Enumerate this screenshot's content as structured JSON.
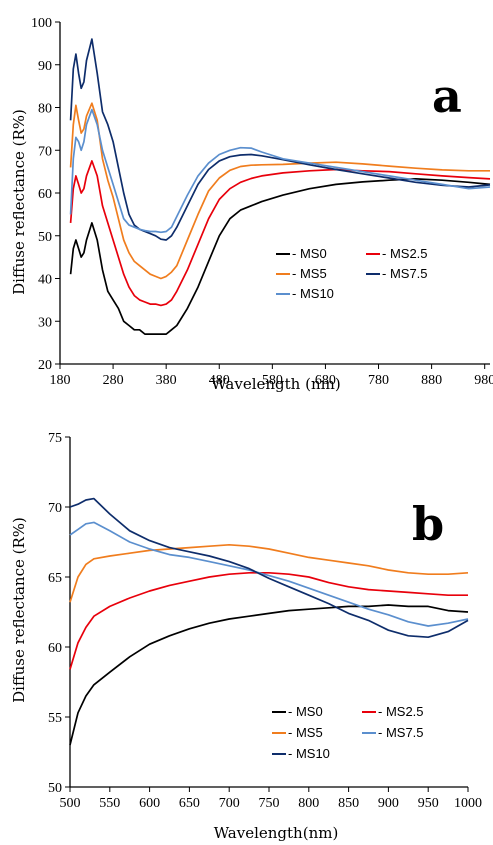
{
  "chart_data": [
    {
      "type": "line",
      "panel_label": "a",
      "xlabel": "Wavelength (nm)",
      "ylabel": "Diffuse reflectance (R%)",
      "xlim": [
        180,
        990
      ],
      "ylim": [
        20,
        100
      ],
      "xticks": [
        180,
        280,
        380,
        480,
        580,
        680,
        780,
        880,
        980
      ],
      "yticks": [
        20,
        30,
        40,
        50,
        60,
        70,
        80,
        90,
        100
      ],
      "legend_position": "center-right",
      "grid": false,
      "series": [
        {
          "name": "- MS0",
          "color": "#000000",
          "x": [
            200,
            205,
            210,
            215,
            220,
            225,
            230,
            240,
            250,
            260,
            270,
            280,
            290,
            300,
            310,
            320,
            330,
            340,
            350,
            360,
            370,
            380,
            390,
            400,
            420,
            440,
            460,
            480,
            500,
            520,
            540,
            560,
            600,
            650,
            700,
            750,
            800,
            850,
            900,
            950,
            990
          ],
          "y": [
            41,
            47,
            49,
            47,
            45,
            46,
            49,
            53,
            49,
            42,
            37,
            35,
            33,
            30,
            29,
            28,
            28,
            27,
            27,
            27,
            27,
            27,
            28,
            29,
            33,
            38,
            44,
            50,
            54,
            56,
            57,
            58,
            59.5,
            61,
            62,
            62.6,
            63,
            63.3,
            63,
            62.5,
            62
          ]
        },
        {
          "name": "- MS2.5",
          "color": "#e8000b",
          "x": [
            200,
            205,
            210,
            215,
            220,
            225,
            230,
            240,
            250,
            260,
            270,
            280,
            290,
            300,
            310,
            320,
            330,
            340,
            350,
            360,
            370,
            380,
            390,
            400,
            420,
            440,
            460,
            480,
            500,
            520,
            540,
            560,
            600,
            650,
            700,
            750,
            800,
            850,
            900,
            950,
            990
          ],
          "y": [
            53,
            61,
            64,
            62,
            60,
            61,
            64,
            67.5,
            64,
            57,
            53,
            49,
            45,
            41,
            38,
            36,
            35,
            34.5,
            34,
            34,
            33.7,
            34,
            35,
            37,
            42,
            48,
            54,
            58.5,
            61,
            62.5,
            63.4,
            64,
            64.7,
            65.2,
            65.5,
            65.2,
            65,
            64.5,
            64,
            63.6,
            63.3
          ]
        },
        {
          "name": "- MS5",
          "color": "#f07d1e",
          "x": [
            200,
            205,
            210,
            215,
            220,
            225,
            230,
            240,
            250,
            260,
            270,
            280,
            290,
            300,
            310,
            320,
            330,
            340,
            350,
            360,
            370,
            380,
            390,
            400,
            420,
            440,
            460,
            480,
            500,
            520,
            540,
            560,
            600,
            650,
            700,
            750,
            800,
            850,
            900,
            950,
            990
          ],
          "y": [
            66,
            76,
            80.5,
            77,
            74,
            75,
            78,
            81,
            77,
            68,
            63,
            59,
            54,
            49,
            46,
            44,
            43,
            42,
            41,
            40.5,
            40,
            40.5,
            41.5,
            43,
            49,
            55,
            60.5,
            63.5,
            65.3,
            66.2,
            66.5,
            66.6,
            66.7,
            67,
            67.2,
            66.8,
            66.3,
            65.8,
            65.4,
            65.2,
            65.2
          ]
        },
        {
          "name": "- MS7.5",
          "color": "#0e2d6b",
          "x": [
            200,
            205,
            210,
            215,
            220,
            225,
            230,
            240,
            250,
            260,
            270,
            280,
            290,
            300,
            310,
            320,
            330,
            340,
            350,
            360,
            370,
            380,
            390,
            400,
            420,
            440,
            460,
            480,
            500,
            520,
            540,
            560,
            600,
            650,
            700,
            750,
            800,
            850,
            900,
            950,
            990
          ],
          "y": [
            77,
            89,
            92.5,
            88,
            84.5,
            86,
            91,
            96,
            88,
            79,
            76,
            72,
            66,
            60,
            55,
            52.5,
            51.5,
            51,
            50.5,
            50,
            49.2,
            49,
            50,
            52,
            57,
            62,
            65.5,
            67.5,
            68.5,
            68.9,
            69,
            68.7,
            67.8,
            66.6,
            65.5,
            64.5,
            63.5,
            62.5,
            61.8,
            61.4,
            61.9
          ]
        },
        {
          "name": "- MS10",
          "color": "#5b8fce",
          "x": [
            200,
            205,
            210,
            215,
            220,
            225,
            230,
            240,
            250,
            260,
            270,
            280,
            290,
            300,
            310,
            320,
            330,
            340,
            350,
            360,
            370,
            380,
            390,
            400,
            420,
            440,
            460,
            480,
            500,
            520,
            540,
            560,
            600,
            650,
            700,
            750,
            800,
            850,
            900,
            950,
            990
          ],
          "y": [
            55,
            68,
            73,
            72,
            70,
            72,
            76,
            79.5,
            76,
            70,
            66,
            62,
            58,
            54,
            52.5,
            52,
            51.5,
            51.2,
            51,
            51,
            50.8,
            51,
            52,
            54.5,
            59.5,
            64,
            67,
            69,
            70,
            70.6,
            70.5,
            69.6,
            68,
            67,
            66,
            65,
            64,
            63,
            62,
            61,
            61.4
          ]
        }
      ]
    },
    {
      "type": "line",
      "panel_label": "b",
      "xlabel": "Wavelength(nm)",
      "ylabel": "Diffuse reflectance (R%)",
      "xlim": [
        500,
        1000
      ],
      "ylim": [
        50,
        75
      ],
      "xticks": [
        500,
        550,
        600,
        650,
        700,
        750,
        800,
        850,
        900,
        950,
        1000
      ],
      "yticks": [
        50,
        55,
        60,
        65,
        70,
        75
      ],
      "legend_position": "bottom-right",
      "grid": false,
      "series": [
        {
          "name": "- MS0",
          "color": "#000000",
          "x": [
            500,
            510,
            520,
            530,
            550,
            575,
            600,
            625,
            650,
            675,
            700,
            725,
            750,
            775,
            800,
            825,
            850,
            875,
            900,
            925,
            950,
            975,
            1000
          ],
          "y": [
            53,
            55.3,
            56.5,
            57.3,
            58.2,
            59.3,
            60.2,
            60.8,
            61.3,
            61.7,
            62,
            62.2,
            62.4,
            62.6,
            62.7,
            62.8,
            62.9,
            62.9,
            63,
            62.9,
            62.9,
            62.6,
            62.5
          ]
        },
        {
          "name": "- MS2.5",
          "color": "#e8000b",
          "x": [
            500,
            510,
            520,
            530,
            550,
            575,
            600,
            625,
            650,
            675,
            700,
            725,
            750,
            775,
            800,
            825,
            850,
            875,
            900,
            925,
            950,
            975,
            1000
          ],
          "y": [
            58.4,
            60.3,
            61.4,
            62.2,
            62.9,
            63.5,
            64,
            64.4,
            64.7,
            65,
            65.2,
            65.3,
            65.3,
            65.2,
            65,
            64.6,
            64.3,
            64.1,
            64,
            63.9,
            63.8,
            63.7,
            63.7
          ]
        },
        {
          "name": "- MS5",
          "color": "#f07d1e",
          "x": [
            500,
            510,
            520,
            530,
            550,
            575,
            600,
            625,
            650,
            675,
            700,
            725,
            750,
            775,
            800,
            825,
            850,
            875,
            900,
            925,
            950,
            975,
            1000
          ],
          "y": [
            63.2,
            65,
            65.9,
            66.3,
            66.5,
            66.7,
            66.9,
            67,
            67.1,
            67.2,
            67.3,
            67.2,
            67,
            66.7,
            66.4,
            66.2,
            66,
            65.8,
            65.5,
            65.3,
            65.2,
            65.2,
            65.3
          ]
        },
        {
          "name": "- MS7.5",
          "color": "#5b8fce",
          "x": [
            500,
            510,
            520,
            530,
            550,
            575,
            600,
            625,
            650,
            675,
            700,
            725,
            750,
            775,
            800,
            825,
            850,
            875,
            900,
            925,
            950,
            975,
            1000
          ],
          "y": [
            68,
            68.4,
            68.8,
            68.9,
            68.3,
            67.5,
            67,
            66.6,
            66.4,
            66.1,
            65.8,
            65.5,
            65.1,
            64.7,
            64.2,
            63.7,
            63.2,
            62.7,
            62.3,
            61.8,
            61.5,
            61.7,
            62
          ]
        },
        {
          "name": "- MS10",
          "color": "#0e2d6b",
          "x": [
            500,
            510,
            520,
            530,
            550,
            575,
            600,
            625,
            650,
            675,
            700,
            725,
            750,
            775,
            800,
            825,
            850,
            875,
            900,
            925,
            950,
            975,
            1000
          ],
          "y": [
            70,
            70.2,
            70.5,
            70.6,
            69.5,
            68.3,
            67.6,
            67.1,
            66.8,
            66.5,
            66.1,
            65.6,
            64.9,
            64.3,
            63.7,
            63.1,
            62.4,
            61.9,
            61.2,
            60.8,
            60.7,
            61.1,
            61.9
          ]
        }
      ]
    }
  ]
}
